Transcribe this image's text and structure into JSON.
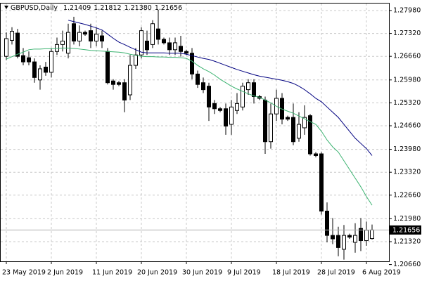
{
  "chart_data": {
    "type": "candlestick",
    "title": "GBPUSD,Daily",
    "quote": [
      {
        "value": 1.21409,
        "label": "1.21409"
      },
      {
        "value": 1.21812,
        "label": "1.21812"
      },
      {
        "value": 1.2138,
        "label": "1.21380"
      },
      {
        "value": 1.21656,
        "label": "1.21656"
      }
    ],
    "last_price": {
      "value": 1.21656,
      "label": "1.21656"
    },
    "categories": [
      "23 May 2019",
      null,
      null,
      null,
      null,
      null,
      null,
      null,
      "2 Jun 2019",
      null,
      null,
      null,
      null,
      null,
      null,
      null,
      "11 Jun 2019",
      null,
      null,
      null,
      null,
      null,
      null,
      null,
      "20 Jun 2019",
      null,
      null,
      null,
      null,
      null,
      null,
      null,
      "30 Jun 2019",
      null,
      null,
      null,
      null,
      null,
      null,
      null,
      "9 Jul 2019",
      null,
      null,
      null,
      null,
      null,
      null,
      null,
      "18 Jul 2019",
      null,
      null,
      null,
      null,
      null,
      null,
      null,
      "28 Jul 2019",
      null,
      null,
      null,
      null,
      null,
      null,
      null,
      "6 Aug 2019",
      null
    ],
    "open": [
      1.2666,
      1.2712,
      1.2733,
      1.2668,
      1.2662,
      1.265,
      1.2598,
      1.2635,
      1.262,
      1.268,
      1.27,
      1.2675,
      1.276,
      1.271,
      1.2735,
      1.274,
      1.271,
      1.2725,
      1.268,
      1.2595,
      1.259,
      1.259,
      1.2555,
      1.264,
      1.267,
      1.271,
      1.27,
      1.2745,
      1.2715,
      1.2705,
      1.2685,
      1.2695,
      1.268,
      1.2675,
      1.2615,
      1.259,
      1.258,
      1.253,
      1.2515,
      1.2515,
      1.247,
      1.251,
      1.252,
      1.257,
      1.259,
      1.255,
      1.254,
      1.242,
      1.25,
      1.2545,
      1.249,
      1.249,
      1.243,
      1.246,
      1.2495,
      1.2385,
      1.2385,
      1.222,
      1.215,
      1.215,
      1.211,
      1.215,
      1.213,
      1.217,
      1.2135,
      1.21409
    ],
    "high": [
      1.2735,
      1.275,
      1.2745,
      1.269,
      1.268,
      1.266,
      1.264,
      1.265,
      1.269,
      1.272,
      1.274,
      1.276,
      1.278,
      1.2755,
      1.274,
      1.276,
      1.275,
      1.274,
      1.269,
      1.26,
      1.2595,
      1.26,
      1.267,
      1.269,
      1.275,
      1.274,
      1.277,
      1.28,
      1.272,
      1.272,
      1.272,
      1.2725,
      1.2685,
      1.269,
      1.2625,
      1.2605,
      1.259,
      1.254,
      1.252,
      1.253,
      1.254,
      1.256,
      1.259,
      1.26,
      1.26,
      1.2555,
      1.255,
      1.253,
      1.257,
      1.256,
      1.2495,
      1.253,
      1.2505,
      1.2525,
      1.25,
      1.239,
      1.239,
      1.2245,
      1.22,
      1.2175,
      1.218,
      1.2155,
      1.2185,
      1.22,
      1.219,
      1.21812
    ],
    "low": [
      1.2655,
      1.27,
      1.266,
      1.264,
      1.264,
      1.259,
      1.257,
      1.261,
      1.2605,
      1.267,
      1.268,
      1.266,
      1.27,
      1.2695,
      1.2725,
      1.269,
      1.2695,
      1.269,
      1.2585,
      1.257,
      1.258,
      1.2505,
      1.254,
      1.263,
      1.266,
      1.267,
      1.269,
      1.27,
      1.27,
      1.267,
      1.267,
      1.2665,
      1.267,
      1.26,
      1.2575,
      1.256,
      1.248,
      1.25,
      1.2505,
      1.244,
      1.244,
      1.25,
      1.251,
      1.2555,
      1.253,
      1.254,
      1.2385,
      1.24,
      1.248,
      1.247,
      1.248,
      1.241,
      1.242,
      1.244,
      1.238,
      1.2375,
      1.221,
      1.213,
      1.2125,
      1.209,
      1.208,
      1.214,
      1.21,
      1.2105,
      1.212,
      1.2138
    ],
    "close": [
      1.2717,
      1.2738,
      1.2666,
      1.265,
      1.265,
      1.2605,
      1.263,
      1.262,
      1.268,
      1.27,
      1.271,
      1.2735,
      1.271,
      1.2735,
      1.273,
      1.271,
      1.273,
      1.271,
      1.259,
      1.2585,
      1.2585,
      1.254,
      1.264,
      1.267,
      1.274,
      1.2685,
      1.276,
      1.2715,
      1.2705,
      1.2685,
      1.2705,
      1.268,
      1.2675,
      1.2615,
      1.2585,
      1.257,
      1.252,
      1.2515,
      1.251,
      1.2465,
      1.252,
      1.253,
      1.258,
      1.259,
      1.255,
      1.2545,
      1.242,
      1.25,
      1.2545,
      1.2485,
      1.2485,
      1.242,
      1.247,
      1.249,
      1.2385,
      1.238,
      1.222,
      1.215,
      1.214,
      1.2115,
      1.215,
      1.2145,
      1.215,
      1.2135,
      1.2165,
      1.21656
    ],
    "series": [
      {
        "color": "#3cb371",
        "values": [
          1.2658,
          1.2665,
          1.2672,
          1.2678,
          1.2685,
          1.2687,
          1.2687,
          1.2688,
          1.2688,
          1.2689,
          1.269,
          1.269,
          1.2689,
          1.2687,
          1.2685,
          1.2683,
          1.2682,
          1.2681,
          1.268,
          1.2679,
          1.2678,
          1.2676,
          1.2672,
          1.2669,
          1.2666,
          1.2665,
          1.2665,
          1.2664,
          1.2664,
          1.2663,
          1.2663,
          1.2662,
          1.266,
          1.2652,
          1.264,
          1.263,
          1.2622,
          1.2612,
          1.26,
          1.259,
          1.258,
          1.2572,
          1.2565,
          1.2558,
          1.2552,
          1.2548,
          1.254,
          1.2532,
          1.2522,
          1.2514,
          1.2508,
          1.2502,
          1.2494,
          1.2486,
          1.2478,
          1.247,
          1.245,
          1.2425,
          1.2405,
          1.239,
          1.2365,
          1.234,
          1.2315,
          1.229,
          1.2262,
          1.2237
        ]
      },
      {
        "color": "#000080",
        "values": [
          null,
          null,
          null,
          null,
          null,
          null,
          null,
          null,
          null,
          null,
          null,
          1.277,
          1.2766,
          1.2762,
          1.2758,
          1.2753,
          1.2748,
          1.2742,
          1.273,
          1.2718,
          1.2707,
          1.27,
          1.2692,
          1.2685,
          1.2678,
          1.2676,
          1.2676,
          1.2676,
          1.2676,
          1.2675,
          1.2675,
          1.2675,
          1.2672,
          1.2668,
          1.2664,
          1.266,
          1.2657,
          1.2652,
          1.2646,
          1.264,
          1.2634,
          1.2628,
          1.2623,
          1.2618,
          1.2613,
          1.2609,
          1.2606,
          1.2603,
          1.26,
          1.2597,
          1.2593,
          1.2588,
          1.258,
          1.257,
          1.2558,
          1.2545,
          1.2535,
          1.252,
          1.2505,
          1.249,
          1.247,
          1.245,
          1.243,
          1.2415,
          1.24,
          1.238
        ]
      }
    ],
    "up_color": "#ffffff",
    "down_color": "#000000",
    "ylim": [
      1.20753,
      1.28182
    ],
    "yticks": [
      {
        "value": 1.2798,
        "label": "1.27980"
      },
      {
        "value": 1.2732,
        "label": "1.27320"
      },
      {
        "value": 1.2666,
        "label": "1.26660"
      },
      {
        "value": 1.2598,
        "label": "1.25980"
      },
      {
        "value": 1.2532,
        "label": "1.25320"
      },
      {
        "value": 1.2466,
        "label": "1.24660"
      },
      {
        "value": 1.2398,
        "label": "1.23980"
      },
      {
        "value": 1.2332,
        "label": "1.23320"
      },
      {
        "value": 1.2266,
        "label": "1.22660"
      },
      {
        "value": 1.2198,
        "label": "1.21980"
      },
      {
        "value": 1.2132,
        "label": "1.21320"
      },
      {
        "value": 1.2066,
        "label": "1.20660"
      }
    ],
    "grid": true
  }
}
